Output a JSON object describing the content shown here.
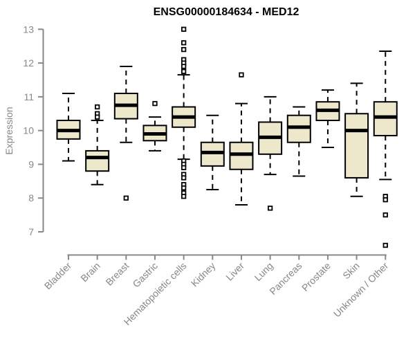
{
  "chart_data": {
    "type": "boxplot",
    "title": "ENSG00000184634 - MED12",
    "xlabel": "",
    "ylabel": "Expression",
    "ylim": [
      6.4,
      13.2
    ],
    "yticks": [
      7,
      8,
      9,
      10,
      11,
      12,
      13
    ],
    "grid": false,
    "legend": "none",
    "colors": {
      "box_fill": "#EDE7CB",
      "box_stroke": "#000000",
      "median": "#000000",
      "whisker": "#000000",
      "axis": "#878787",
      "tick_text": "#878787",
      "title": "#000000",
      "background": "#ffffff"
    },
    "categories": [
      "Bladder",
      "Brain",
      "Breast",
      "Gastric",
      "Hematopoietic cells",
      "Kidney",
      "Liver",
      "Lung",
      "Pancreas",
      "Prostate",
      "Skin",
      "Unknown / Other"
    ],
    "series": [
      {
        "category": "Bladder",
        "whisker_low": 9.1,
        "q1": 9.75,
        "median": 10.0,
        "q3": 10.3,
        "whisker_high": 11.1,
        "outliers": []
      },
      {
        "category": "Brain",
        "whisker_low": 8.4,
        "q1": 8.8,
        "median": 9.2,
        "q3": 9.4,
        "whisker_high": 10.3,
        "outliers": [
          10.7,
          10.5,
          10.4
        ]
      },
      {
        "category": "Breast",
        "whisker_low": 9.65,
        "q1": 10.35,
        "median": 10.75,
        "q3": 11.1,
        "whisker_high": 11.9,
        "outliers": [
          8.0
        ]
      },
      {
        "category": "Gastric",
        "whisker_low": 9.4,
        "q1": 9.7,
        "median": 9.9,
        "q3": 10.15,
        "whisker_high": 10.4,
        "outliers": [
          10.8
        ]
      },
      {
        "category": "Hematopoietic cells",
        "whisker_low": 9.15,
        "q1": 10.1,
        "median": 10.4,
        "q3": 10.7,
        "whisker_high": 11.65,
        "outliers": [
          13.0,
          12.6,
          12.4,
          12.1,
          12.0,
          11.9,
          11.75,
          9.1,
          9.0,
          8.9,
          8.7,
          8.6,
          8.4,
          8.3,
          8.15,
          8.05
        ]
      },
      {
        "category": "Kidney",
        "whisker_low": 8.25,
        "q1": 8.95,
        "median": 9.35,
        "q3": 9.65,
        "whisker_high": 10.45,
        "outliers": []
      },
      {
        "category": "Liver",
        "whisker_low": 7.8,
        "q1": 8.85,
        "median": 9.3,
        "q3": 9.65,
        "whisker_high": 10.8,
        "outliers": [
          11.65
        ]
      },
      {
        "category": "Lung",
        "whisker_low": 8.7,
        "q1": 9.3,
        "median": 9.8,
        "q3": 10.25,
        "whisker_high": 11.0,
        "outliers": [
          7.7
        ]
      },
      {
        "category": "Pancreas",
        "whisker_low": 8.65,
        "q1": 9.65,
        "median": 10.1,
        "q3": 10.45,
        "whisker_high": 10.7,
        "outliers": []
      },
      {
        "category": "Prostate",
        "whisker_low": 9.5,
        "q1": 10.3,
        "median": 10.6,
        "q3": 10.85,
        "whisker_high": 11.2,
        "outliers": []
      },
      {
        "category": "Skin",
        "whisker_low": 8.05,
        "q1": 8.6,
        "median": 10.0,
        "q3": 10.5,
        "whisker_high": 11.4,
        "outliers": []
      },
      {
        "category": "Unknown / Other",
        "whisker_low": 8.55,
        "q1": 9.85,
        "median": 10.4,
        "q3": 10.85,
        "whisker_high": 12.35,
        "outliers": [
          8.05,
          7.95,
          7.5,
          6.6
        ]
      }
    ]
  }
}
